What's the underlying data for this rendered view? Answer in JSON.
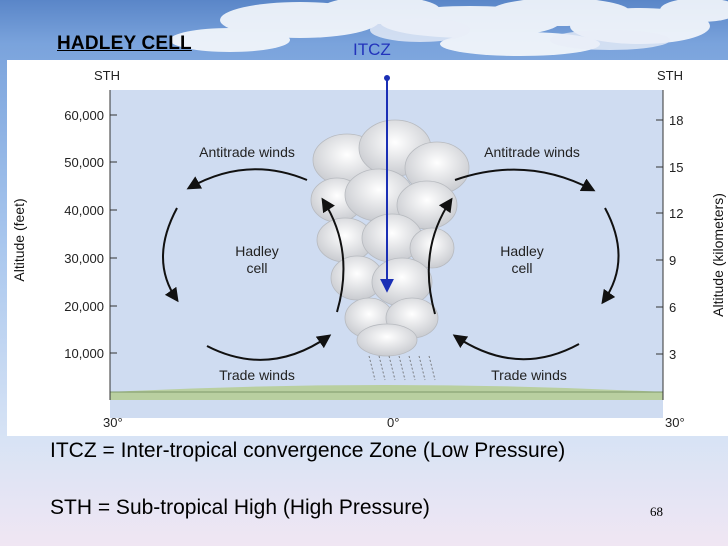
{
  "slide": {
    "title": "HADLEY CELL",
    "page_number": "68"
  },
  "diagram": {
    "itcz_label": "ITCZ",
    "left_pole_label": "STH",
    "right_pole_label": "STH",
    "left_axis_title": "Altitude (feet)",
    "right_axis_title": "Altitude (kilometers)",
    "left_ticks": [
      "60,000",
      "50,000",
      "40,000",
      "30,000",
      "20,000",
      "10,000"
    ],
    "right_ticks": [
      "18",
      "15",
      "12",
      "9",
      "6",
      "3"
    ],
    "bottom_labels": {
      "left": "30°",
      "center": "0°",
      "right": "30°"
    },
    "cells": [
      {
        "upper": "Antitrade winds",
        "name_line1": "Hadley",
        "name_line2": "cell",
        "lower": "Trade winds"
      },
      {
        "upper": "Antitrade winds",
        "name_line1": "Hadley",
        "name_line2": "cell",
        "lower": "Trade winds"
      }
    ]
  },
  "definitions": {
    "itcz": "ITCZ = Inter-tropical convergence Zone (Low Pressure)",
    "sth": "STH = Sub-tropical High (High Pressure)"
  },
  "colors": {
    "diagram_background": "#cfdcf1",
    "itcz_arrow": "#1a2fb5",
    "ground": "#b9cfa0"
  }
}
